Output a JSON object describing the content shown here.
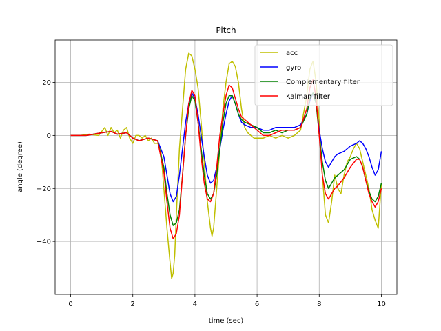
{
  "chart_data": {
    "type": "line",
    "title": "Pitch",
    "xlabel": "time (sec)",
    "ylabel": "angle (degree)",
    "xlim": [
      -0.5,
      10.5
    ],
    "ylim": [
      -60,
      36
    ],
    "xticks": [
      0,
      2,
      4,
      6,
      8,
      10
    ],
    "yticks": [
      -40,
      -20,
      0,
      20
    ],
    "grid": true,
    "legend": "top-right",
    "series": [
      {
        "name": "acc",
        "color": "#bfbf00",
        "x": [
          0,
          0.3,
          0.6,
          0.9,
          1.0,
          1.1,
          1.2,
          1.3,
          1.4,
          1.5,
          1.6,
          1.7,
          1.8,
          1.9,
          2.0,
          2.1,
          2.2,
          2.3,
          2.4,
          2.5,
          2.6,
          2.7,
          2.8,
          2.9,
          3.0,
          3.1,
          3.2,
          3.25,
          3.3,
          3.35,
          3.4,
          3.5,
          3.6,
          3.7,
          3.8,
          3.9,
          4.0,
          4.1,
          4.2,
          4.3,
          4.4,
          4.5,
          4.55,
          4.6,
          4.7,
          4.8,
          4.9,
          5.0,
          5.1,
          5.2,
          5.3,
          5.4,
          5.5,
          5.6,
          5.7,
          5.8,
          5.9,
          6.0,
          6.2,
          6.4,
          6.6,
          6.8,
          7.0,
          7.2,
          7.4,
          7.6,
          7.7,
          7.8,
          7.9,
          8.0,
          8.1,
          8.2,
          8.3,
          8.4,
          8.5,
          8.6,
          8.7,
          8.8,
          8.9,
          9.0,
          9.1,
          9.2,
          9.3,
          9.4,
          9.5,
          9.6,
          9.7,
          9.8,
          9.9,
          10.0
        ],
        "values": [
          0,
          0,
          0.5,
          0,
          1.5,
          3,
          0,
          3,
          1,
          2,
          -1,
          2,
          3,
          -1,
          -3,
          0,
          0,
          -1,
          0,
          -2,
          -1,
          -3,
          -3,
          -5,
          -20,
          -35,
          -48,
          -54,
          -52,
          -45,
          -30,
          -5,
          10,
          25,
          31,
          30,
          25,
          18,
          5,
          -10,
          -25,
          -35,
          -38,
          -35,
          -20,
          -5,
          10,
          20,
          27,
          28,
          26,
          20,
          10,
          3,
          1,
          0,
          -1,
          -1,
          -1,
          0,
          -1,
          0,
          -1,
          0,
          2,
          15,
          25,
          28,
          20,
          5,
          -15,
          -30,
          -33,
          -25,
          -15,
          -20,
          -22,
          -15,
          -10,
          -8,
          -5,
          -3,
          -5,
          -10,
          -15,
          -20,
          -28,
          -32,
          -35,
          -18
        ]
      },
      {
        "name": "gyro",
        "color": "#0000ff",
        "x": [
          0,
          0.5,
          1.0,
          1.3,
          1.5,
          1.8,
          2.0,
          2.2,
          2.5,
          2.8,
          3.0,
          3.1,
          3.2,
          3.3,
          3.4,
          3.5,
          3.6,
          3.7,
          3.8,
          3.9,
          4.0,
          4.1,
          4.2,
          4.3,
          4.4,
          4.5,
          4.6,
          4.7,
          4.8,
          4.9,
          5.0,
          5.1,
          5.2,
          5.3,
          5.4,
          5.5,
          5.6,
          5.8,
          6.0,
          6.2,
          6.4,
          6.6,
          6.8,
          7.0,
          7.2,
          7.4,
          7.6,
          7.7,
          7.8,
          7.9,
          8.0,
          8.1,
          8.2,
          8.3,
          8.4,
          8.5,
          8.6,
          8.8,
          9.0,
          9.2,
          9.3,
          9.4,
          9.5,
          9.6,
          9.7,
          9.8,
          9.9,
          10.0
        ],
        "values": [
          0,
          0,
          1,
          1.5,
          0.5,
          1,
          -1,
          -2,
          -1,
          -2,
          -8,
          -15,
          -22,
          -25,
          -23,
          -15,
          -5,
          5,
          12,
          16,
          14,
          8,
          0,
          -8,
          -15,
          -18,
          -17,
          -12,
          -5,
          2,
          8,
          13,
          15,
          12,
          8,
          5,
          4,
          3,
          3,
          2,
          2,
          3,
          3,
          3,
          3,
          4,
          8,
          13,
          16,
          12,
          2,
          -5,
          -10,
          -12,
          -10,
          -8,
          -7,
          -6,
          -4,
          -3,
          -2,
          -3,
          -5,
          -8,
          -12,
          -15,
          -13,
          -6
        ]
      },
      {
        "name": "Complementary filter",
        "color": "#008000",
        "x": [
          0,
          0.5,
          1.0,
          1.3,
          1.5,
          1.8,
          2.0,
          2.2,
          2.5,
          2.8,
          3.0,
          3.1,
          3.2,
          3.3,
          3.4,
          3.5,
          3.6,
          3.7,
          3.8,
          3.9,
          4.0,
          4.1,
          4.2,
          4.3,
          4.4,
          4.5,
          4.6,
          4.7,
          4.8,
          4.9,
          5.0,
          5.1,
          5.2,
          5.3,
          5.4,
          5.5,
          5.6,
          5.8,
          6.0,
          6.2,
          6.4,
          6.6,
          6.8,
          7.0,
          7.2,
          7.4,
          7.6,
          7.7,
          7.8,
          7.9,
          8.0,
          8.1,
          8.2,
          8.3,
          8.4,
          8.5,
          8.6,
          8.8,
          9.0,
          9.2,
          9.3,
          9.4,
          9.5,
          9.6,
          9.7,
          9.8,
          9.9,
          10.0
        ],
        "values": [
          0,
          0,
          1,
          1.5,
          0.5,
          1,
          -1,
          -2,
          -1,
          -2,
          -12,
          -22,
          -30,
          -34,
          -33,
          -28,
          -15,
          0,
          10,
          15,
          13,
          5,
          -5,
          -15,
          -22,
          -24,
          -22,
          -15,
          -5,
          5,
          12,
          15,
          15,
          12,
          8,
          6,
          5,
          4,
          3,
          1,
          1,
          2,
          1,
          2,
          2,
          3,
          8,
          14,
          16,
          12,
          0,
          -10,
          -17,
          -20,
          -18,
          -16,
          -15,
          -13,
          -9,
          -8,
          -9,
          -12,
          -17,
          -21,
          -24,
          -25,
          -23,
          -18
        ]
      },
      {
        "name": "Kalman filter",
        "color": "#ff0000",
        "x": [
          0,
          0.5,
          1.0,
          1.3,
          1.5,
          1.8,
          2.0,
          2.2,
          2.5,
          2.8,
          3.0,
          3.1,
          3.2,
          3.3,
          3.4,
          3.5,
          3.6,
          3.7,
          3.8,
          3.9,
          4.0,
          4.1,
          4.2,
          4.3,
          4.4,
          4.5,
          4.6,
          4.7,
          4.8,
          4.9,
          5.0,
          5.1,
          5.2,
          5.3,
          5.4,
          5.5,
          5.6,
          5.8,
          6.0,
          6.2,
          6.4,
          6.6,
          6.8,
          7.0,
          7.2,
          7.4,
          7.6,
          7.7,
          7.8,
          7.9,
          8.0,
          8.1,
          8.2,
          8.3,
          8.4,
          8.5,
          8.6,
          8.8,
          9.0,
          9.2,
          9.3,
          9.4,
          9.5,
          9.6,
          9.7,
          9.8,
          9.9,
          10.0
        ],
        "values": [
          0,
          0,
          1,
          1.5,
          0.5,
          1,
          -1,
          -2,
          -1,
          -2,
          -14,
          -25,
          -35,
          -39,
          -37,
          -30,
          -15,
          0,
          12,
          17,
          15,
          5,
          -8,
          -18,
          -24,
          -25,
          -22,
          -12,
          0,
          8,
          15,
          19,
          18,
          14,
          10,
          7,
          6,
          4,
          2,
          0,
          0,
          1,
          2,
          2,
          2,
          3,
          10,
          18,
          21,
          14,
          0,
          -15,
          -22,
          -24,
          -22,
          -20,
          -19,
          -16,
          -12,
          -9,
          -9,
          -12,
          -17,
          -22,
          -25,
          -27,
          -25,
          -20
        ]
      }
    ]
  }
}
